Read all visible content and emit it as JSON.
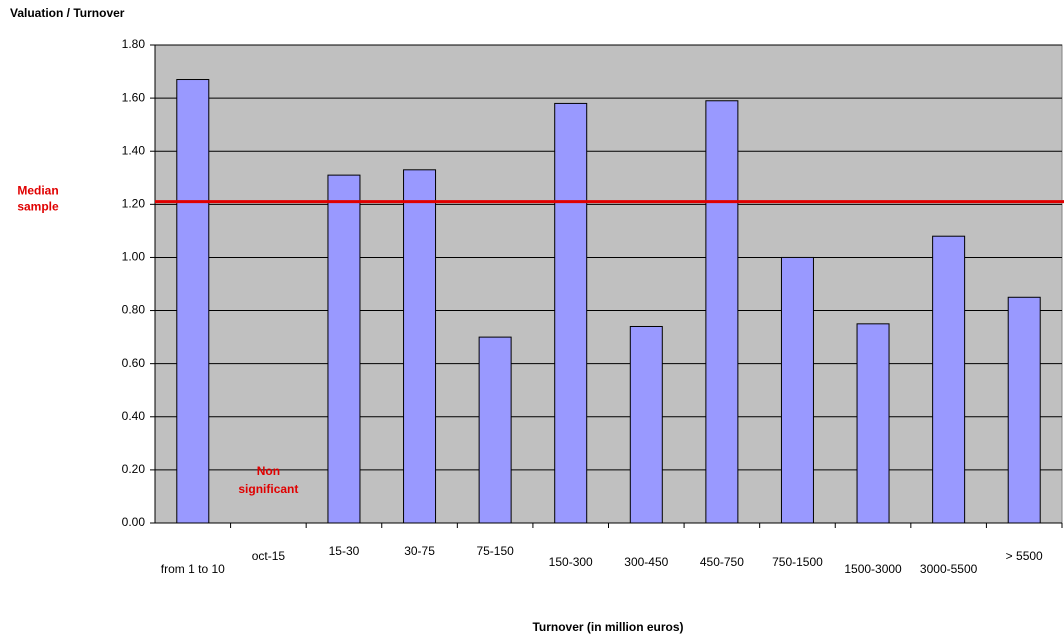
{
  "chart_data": {
    "type": "bar",
    "title": "Valuation / Turnover",
    "x_label": "Turnover (in million euros)",
    "categories": [
      "from 1 to 10",
      "oct-15",
      "15-30",
      "30-75",
      "75-150",
      "150-300",
      "300-450",
      "450-750",
      "750-1500",
      "1500-3000",
      "3000-5500",
      "> 5500"
    ],
    "values": [
      1.67,
      null,
      1.31,
      1.33,
      0.7,
      1.58,
      0.74,
      1.59,
      1.0,
      0.75,
      1.08,
      0.85
    ],
    "color": "#9999ff",
    "ylim": [
      0,
      1.8
    ],
    "yticks": [
      {
        "value": 0,
        "label": "0.00"
      },
      {
        "value": 0.2,
        "label": "0.20"
      },
      {
        "value": 0.4,
        "label": "0.40"
      },
      {
        "value": 0.6,
        "label": "0.60"
      },
      {
        "value": 0.8,
        "label": "0.80"
      },
      {
        "value": 1.0,
        "label": "1.00"
      },
      {
        "value": 1.2,
        "label": "1.20"
      },
      {
        "value": 1.4,
        "label": "1.40"
      },
      {
        "value": 1.6,
        "label": "1.60"
      },
      {
        "value": 1.8,
        "label": "1.80"
      }
    ],
    "grid": true,
    "median": {
      "label": "Median sample",
      "value": 1.21,
      "color": "#e00000"
    },
    "annotation": "Non significant"
  }
}
